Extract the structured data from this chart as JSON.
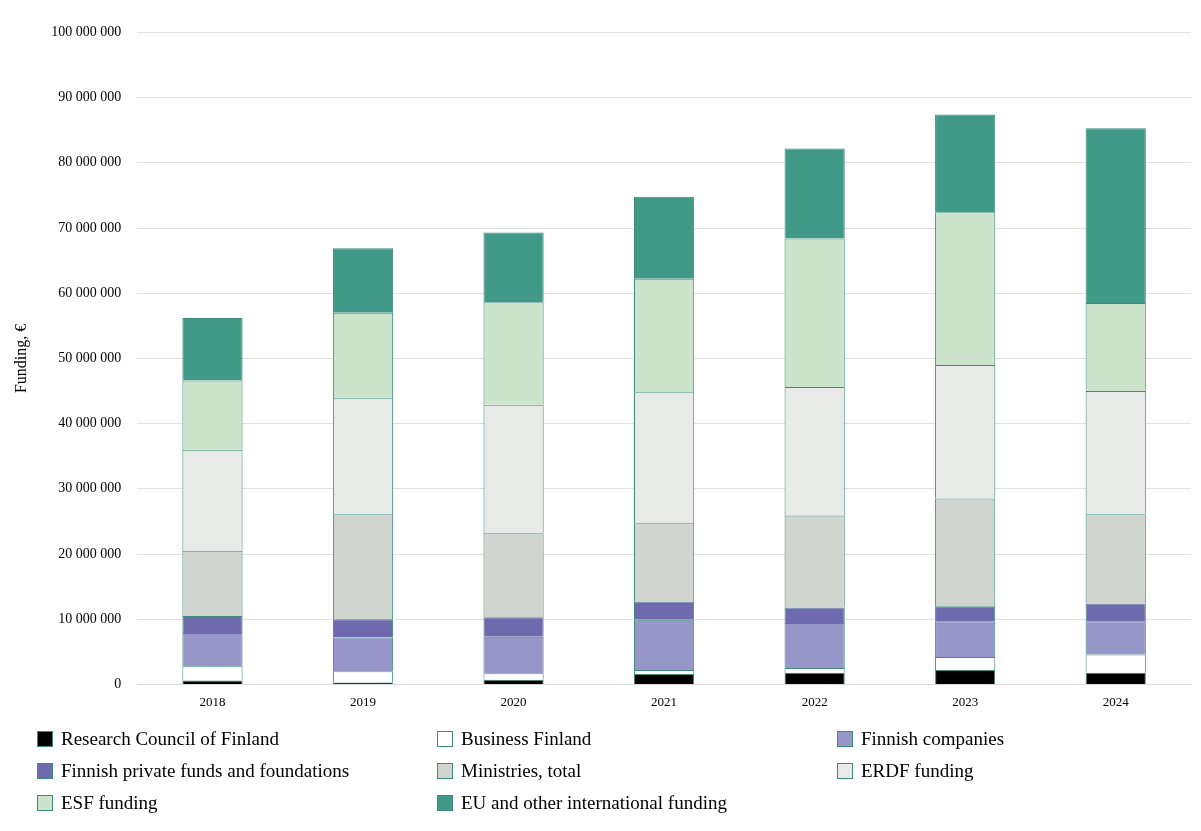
{
  "chart_data": {
    "type": "bar",
    "stacked": true,
    "ylabel": "Funding, €",
    "categories": [
      "2018",
      "2019",
      "2020",
      "2021",
      "2022",
      "2023",
      "2024"
    ],
    "series": [
      {
        "name": "Research Council of Finland",
        "color": "#000000",
        "values": [
          600000,
          300000,
          700000,
          1600000,
          1800000,
          2200000,
          1800000
        ]
      },
      {
        "name": "Business Finland",
        "color": "#ffffff",
        "values": [
          2200000,
          1700000,
          1000000,
          600000,
          700000,
          2000000,
          2800000
        ]
      },
      {
        "name": "Finnish companies",
        "color": "#9696c8",
        "values": [
          5100000,
          5200000,
          5600000,
          7700000,
          6900000,
          5500000,
          5100000
        ]
      },
      {
        "name": "Finnish private funds and foundations",
        "color": "#6e6aad",
        "values": [
          2600000,
          2800000,
          3000000,
          2800000,
          2400000,
          2300000,
          2700000
        ]
      },
      {
        "name": "Ministries, total",
        "color": "#d0d6cf",
        "values": [
          10000000,
          16100000,
          12900000,
          12000000,
          14100000,
          16500000,
          13700000
        ]
      },
      {
        "name": "ERDF funding",
        "color": "#e8eae7",
        "values": [
          15500000,
          17800000,
          19700000,
          20100000,
          19700000,
          20500000,
          18900000
        ]
      },
      {
        "name": "ESF funding",
        "color": "#cce4cb",
        "values": [
          10600000,
          13100000,
          15700000,
          17400000,
          22800000,
          23400000,
          13500000
        ]
      },
      {
        "name": "EU and other international funding",
        "color": "#419a88",
        "values": [
          9600000,
          9900000,
          10700000,
          12600000,
          13800000,
          15000000,
          26800000
        ]
      }
    ],
    "ylim": [
      0,
      100000000
    ],
    "yticks": [
      {
        "value": 0,
        "label": "0"
      },
      {
        "value": 10000000,
        "label": "10 000 000"
      },
      {
        "value": 20000000,
        "label": "20 000 000"
      },
      {
        "value": 30000000,
        "label": "30 000 000"
      },
      {
        "value": 40000000,
        "label": "40 000 000"
      },
      {
        "value": 50000000,
        "label": "50 000 000"
      },
      {
        "value": 60000000,
        "label": "60 000 000"
      },
      {
        "value": 70000000,
        "label": "70 000 000"
      },
      {
        "value": 80000000,
        "label": "80 000 000"
      },
      {
        "value": 90000000,
        "label": "90 000 000"
      },
      {
        "value": 100000000,
        "label": "100 000 000"
      }
    ],
    "grid": "y",
    "legend": "bottom"
  }
}
